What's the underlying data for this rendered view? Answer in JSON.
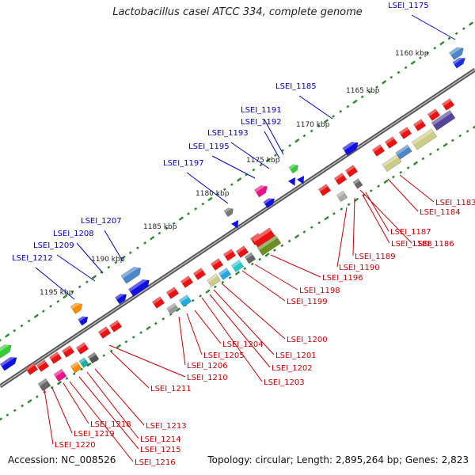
{
  "title": "Lactobacillus casei ATCC 334, complete genome",
  "footer": {
    "accession": "Accession: NC_008526",
    "topology": "Topology: circular; Length: 2,895,264 bp; Genes: 2,823"
  },
  "colors": {
    "forward_label": "#0000cc",
    "reverse_label": "#cc0000",
    "tick_dot": "#2a8a2a",
    "backbone": "#707070"
  },
  "ticks": [
    "1160 kbp",
    "1165 kbp",
    "1170 kbp",
    "1175 kbp",
    "1180 kbp",
    "1185 kbp",
    "1190 kbp",
    "1195 kbp"
  ],
  "forward_genes": [
    "LSEI_1175",
    "LSEI_1185",
    "LSEI_1191",
    "LSEI_1192",
    "LSEI_1193",
    "LSEI_1195",
    "LSEI_1197",
    "LSEI_1207",
    "LSEI_1208",
    "LSEI_1209",
    "LSEI_1212"
  ],
  "reverse_genes": [
    "LSEI_1183",
    "LSEI_1184",
    "LSEI_1186",
    "LSEI_1187",
    "LSEI_1188",
    "LSEI_1189",
    "LSEI_1190",
    "LSEI_1196",
    "LSEI_1198",
    "LSEI_1199",
    "LSEI_1200",
    "LSEI_1201",
    "LSEI_1202",
    "LSEI_1203",
    "LSEI_1204",
    "LSEI_1205",
    "LSEI_1206",
    "LSEI_1210",
    "LSEI_1211",
    "LSEI_1213",
    "LSEI_1214",
    "LSEI_1215",
    "LSEI_1216",
    "LSEI_1218",
    "LSEI_1219",
    "LSEI_1220"
  ]
}
